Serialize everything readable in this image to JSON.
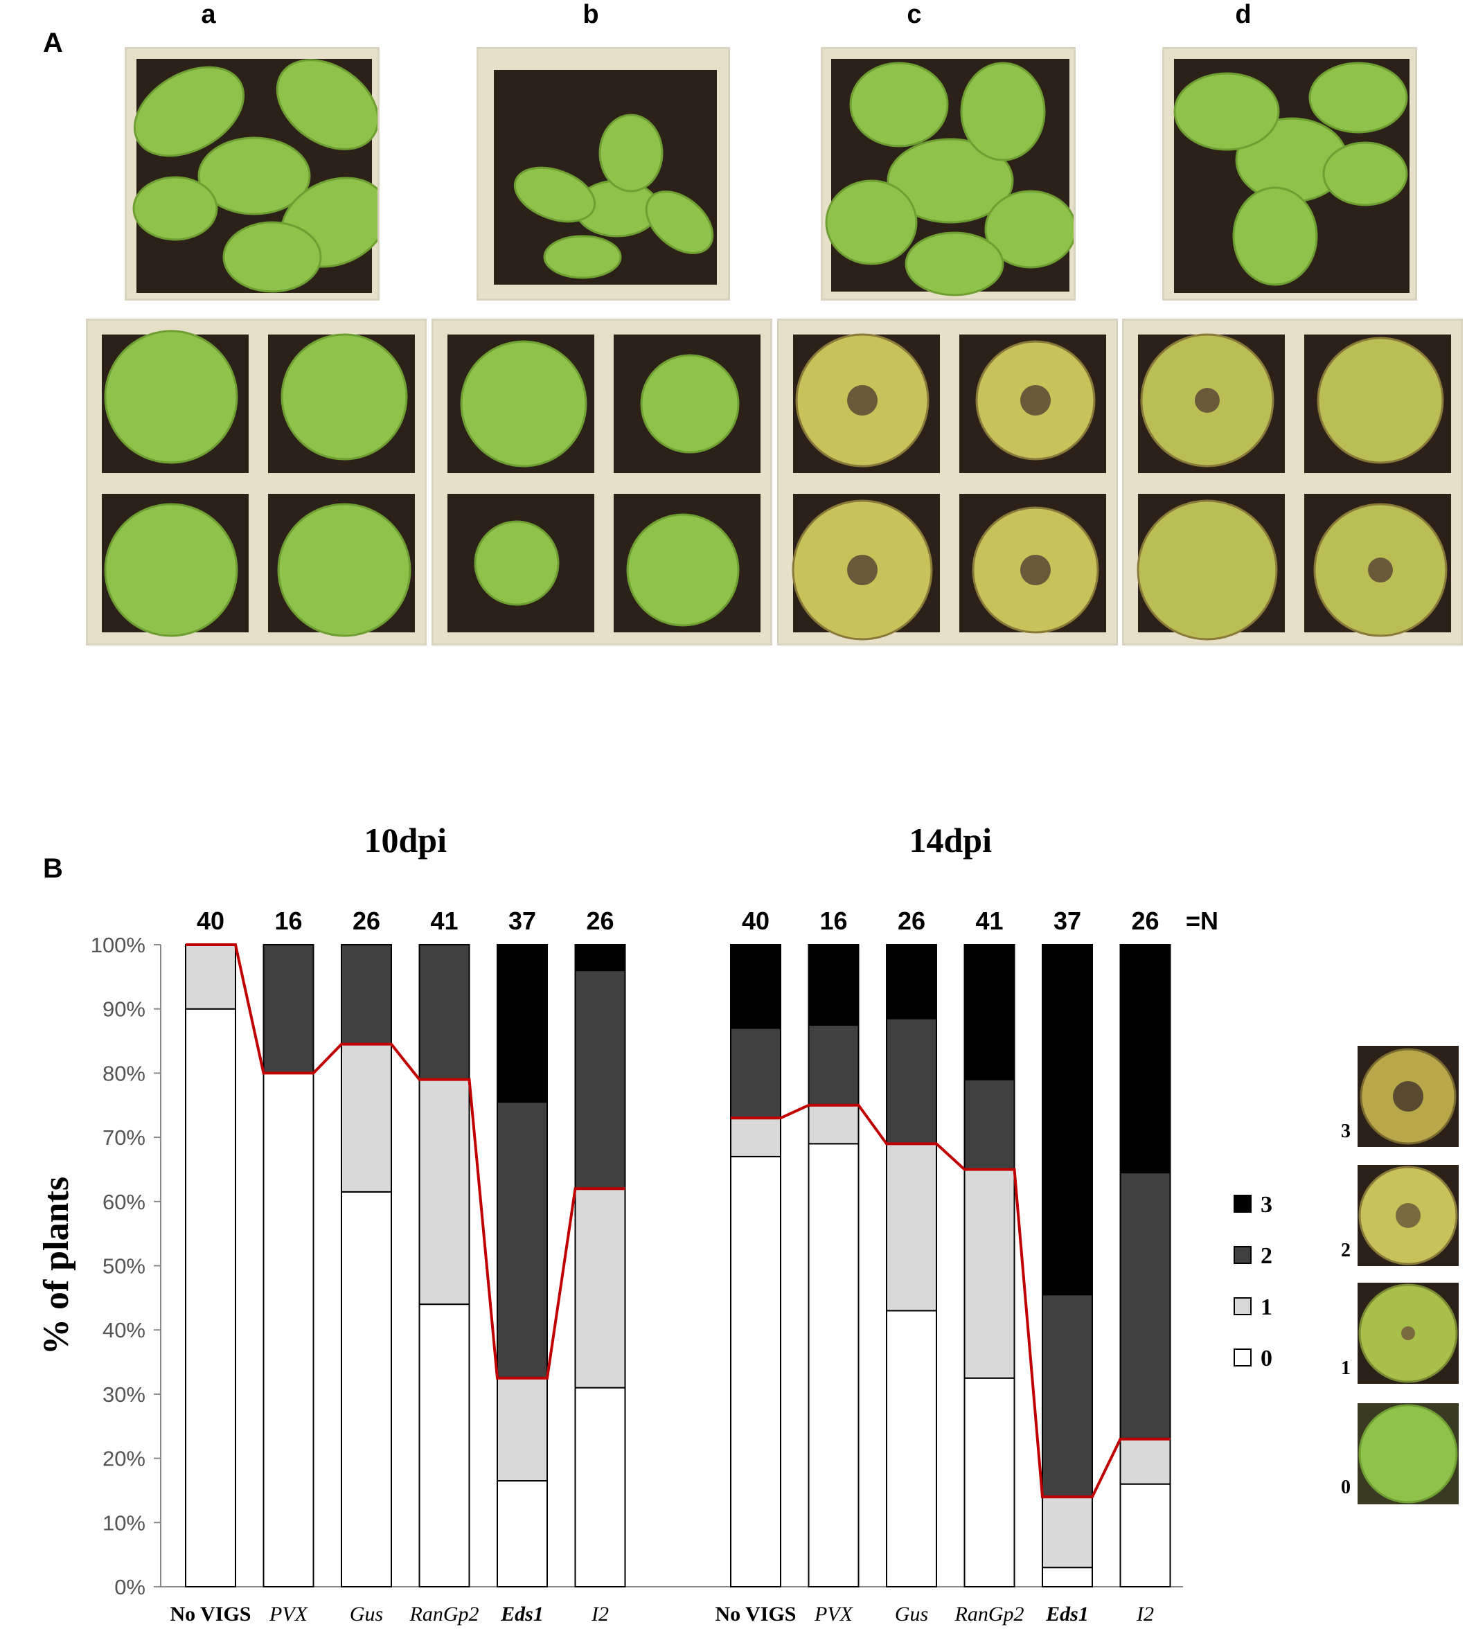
{
  "panel_a": {
    "label": "A",
    "columns": [
      "a",
      "b",
      "c",
      "d"
    ]
  },
  "panel_b": {
    "label": "B",
    "severity_thumbnails": [
      "3",
      "2",
      "1",
      "0"
    ]
  },
  "colors": {
    "score_0": "#ffffff",
    "score_1": "#d9d9d9",
    "score_2": "#404040",
    "score_3": "#000000",
    "threshold_line": "#c00000",
    "leaf_healthy": "#8fc24a",
    "leaf_yellow": "#c8c25a",
    "soil": "#2b2118",
    "pot": "#e6e0c8"
  },
  "chart_data": {
    "type": "bar",
    "stacked": true,
    "ylabel": "% of plants",
    "ylim": [
      0,
      100
    ],
    "yticks": [
      "0%",
      "10%",
      "20%",
      "30%",
      "40%",
      "50%",
      "60%",
      "70%",
      "80%",
      "90%",
      "100%"
    ],
    "n_suffix": "=N",
    "legend": {
      "placement": "right",
      "entries": [
        "3",
        "2",
        "1",
        "0"
      ]
    },
    "groups": [
      {
        "title": "10dpi",
        "categories": [
          "No VIGS",
          "PVX",
          "Gus",
          "RanGp2",
          "Eds1",
          "I2"
        ],
        "n": [
          "40",
          "16",
          "26",
          "41",
          "37",
          "26"
        ],
        "series": [
          {
            "name": "0",
            "values": [
              90,
              80,
              61.5,
              44,
              16.5,
              31
            ]
          },
          {
            "name": "1",
            "values": [
              10,
              0,
              23,
              35,
              16,
              31
            ]
          },
          {
            "name": "2",
            "values": [
              0,
              20,
              15.5,
              21,
              43,
              34
            ]
          },
          {
            "name": "3",
            "values": [
              0,
              0,
              0,
              0,
              24.5,
              4
            ]
          }
        ],
        "red_line": [
          100,
          80,
          84.5,
          79,
          32.5,
          62
        ]
      },
      {
        "title": "14dpi",
        "categories": [
          "No VIGS",
          "PVX",
          "Gus",
          "RanGp2",
          "Eds1",
          "I2"
        ],
        "n": [
          "40",
          "16",
          "26",
          "41",
          "37",
          "26"
        ],
        "series": [
          {
            "name": "0",
            "values": [
              67,
              69,
              43,
              32.5,
              3,
              16
            ]
          },
          {
            "name": "1",
            "values": [
              6,
              6,
              26,
              32.5,
              11,
              7
            ]
          },
          {
            "name": "2",
            "values": [
              14,
              12.5,
              19.5,
              14,
              31.5,
              41.5
            ]
          },
          {
            "name": "3",
            "values": [
              13,
              12.5,
              11.5,
              21,
              54.5,
              35.5
            ]
          }
        ],
        "red_line": [
          73,
          75,
          69,
          65,
          14,
          23
        ]
      }
    ]
  }
}
